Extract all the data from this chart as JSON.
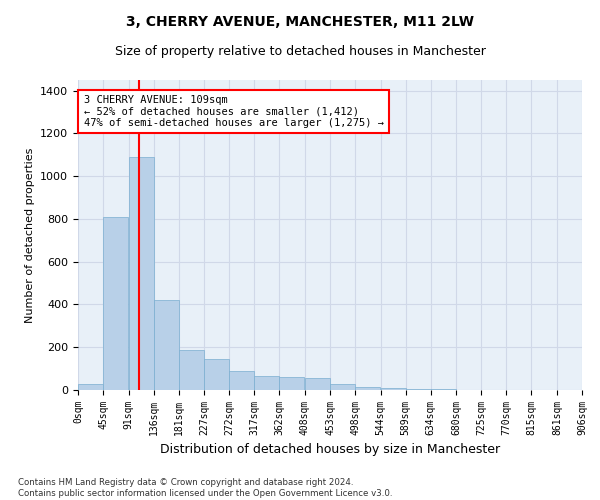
{
  "title": "3, CHERRY AVENUE, MANCHESTER, M11 2LW",
  "subtitle": "Size of property relative to detached houses in Manchester",
  "xlabel": "Distribution of detached houses by size in Manchester",
  "ylabel": "Number of detached properties",
  "bar_color": "#b8d0e8",
  "bar_edge_color": "#7aaed0",
  "grid_color": "#d0d8e8",
  "background_color": "#e8f0f8",
  "property_line_x": 109,
  "property_line_color": "red",
  "annotation_text": "3 CHERRY AVENUE: 109sqm\n← 52% of detached houses are smaller (1,412)\n47% of semi-detached houses are larger (1,275) →",
  "annotation_box_color": "red",
  "bin_edges": [
    0,
    45,
    91,
    136,
    181,
    227,
    272,
    317,
    362,
    408,
    453,
    498,
    544,
    589,
    634,
    680,
    725,
    770,
    815,
    861,
    906
  ],
  "bar_heights": [
    30,
    810,
    1090,
    420,
    185,
    145,
    90,
    65,
    60,
    55,
    30,
    15,
    10,
    5,
    3,
    2,
    1,
    1,
    0,
    1
  ],
  "ylim": [
    0,
    1450
  ],
  "yticks": [
    0,
    200,
    400,
    600,
    800,
    1000,
    1200,
    1400
  ],
  "footer_text": "Contains HM Land Registry data © Crown copyright and database right 2024.\nContains public sector information licensed under the Open Government Licence v3.0.",
  "figsize": [
    6.0,
    5.0
  ],
  "dpi": 100
}
